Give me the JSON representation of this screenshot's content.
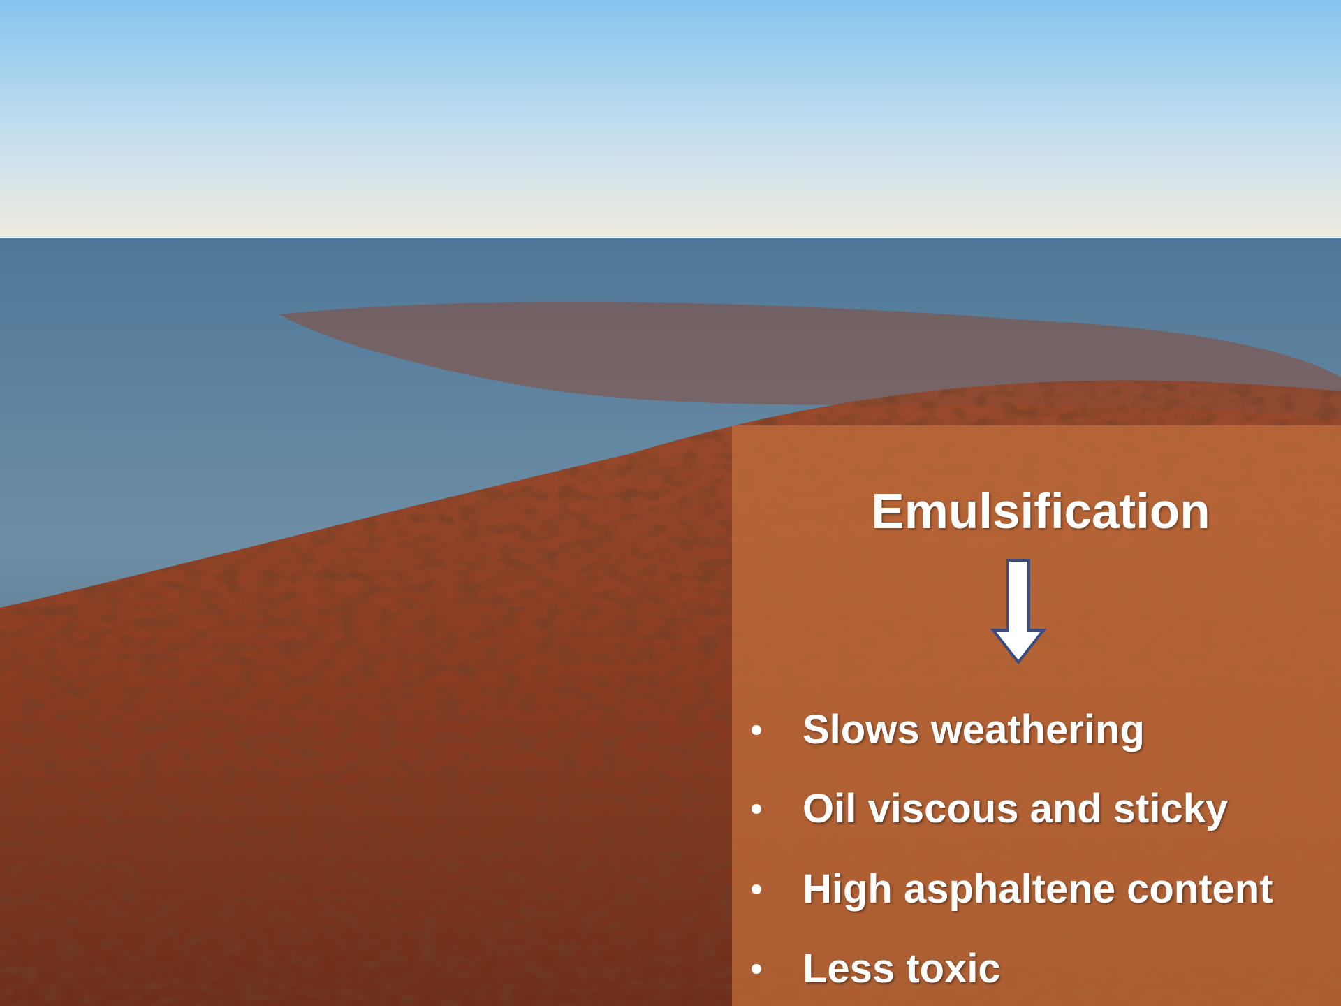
{
  "slide": {
    "title": "Emulsification",
    "bullets": [
      "Slows weathering",
      "Oil viscous and sticky",
      "High asphaltene content",
      "Less toxic"
    ]
  }
}
